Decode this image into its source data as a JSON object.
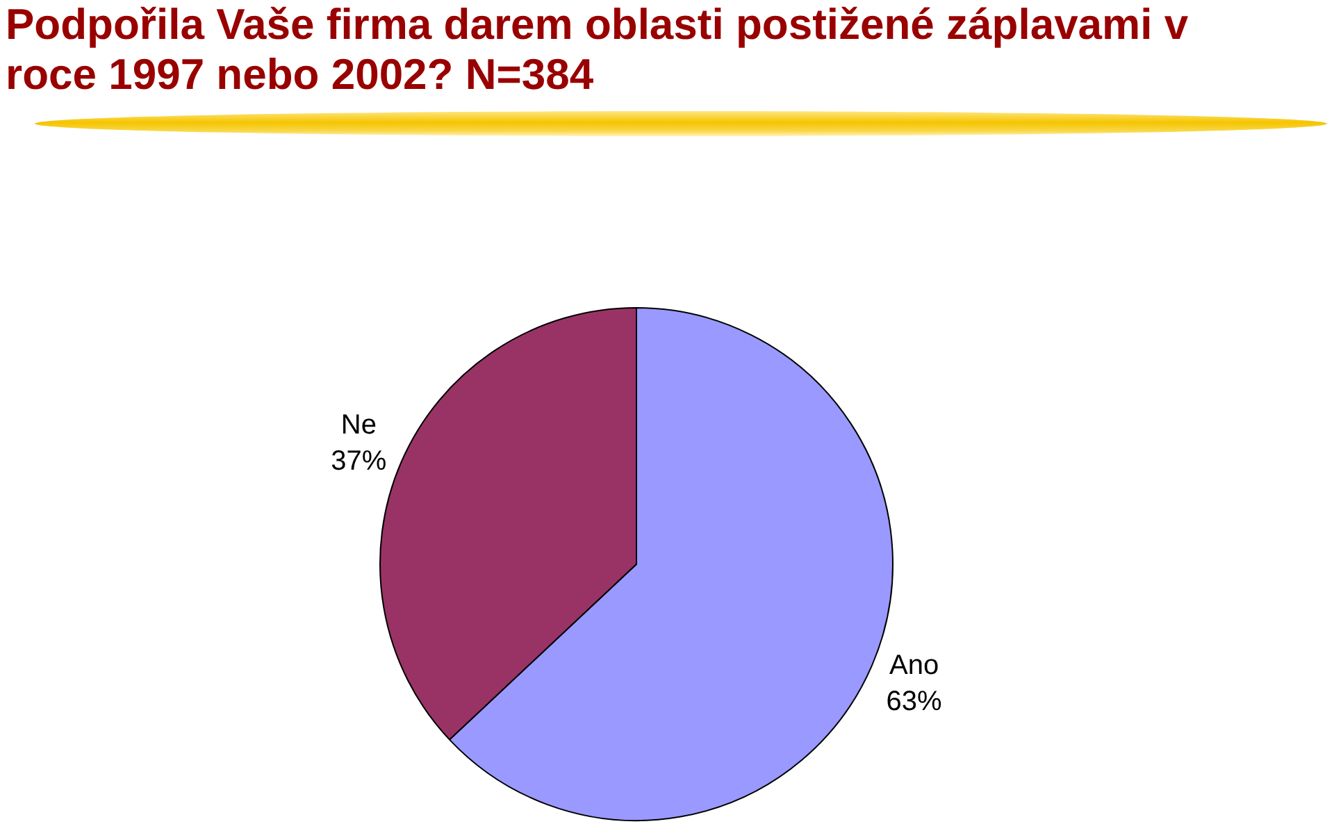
{
  "chart_data": {
    "type": "pie",
    "title": "Podpořila Vaše firma darem oblasti postižené záplavami v roce 1997 nebo 2002? N=384",
    "categories": [
      "Ano",
      "Ne"
    ],
    "values": [
      63,
      37
    ],
    "value_labels": [
      "63%",
      "37%"
    ],
    "colors": [
      "#9999ff",
      "#993366"
    ],
    "legend": false
  }
}
